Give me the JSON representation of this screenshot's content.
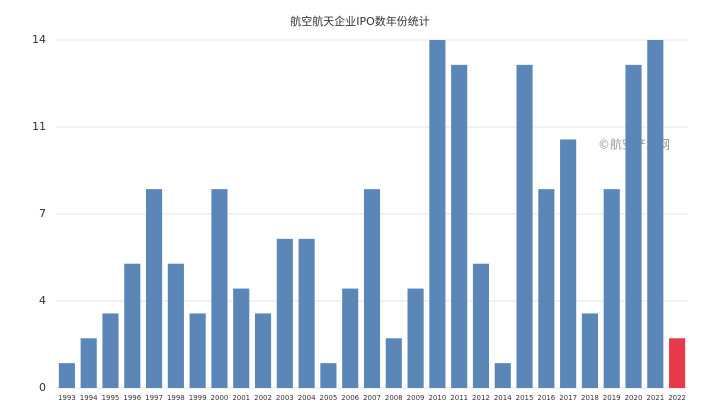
{
  "chart_data": {
    "type": "bar",
    "title": "航空航天企业IPO数年份统计",
    "annotation": "©航空产业网",
    "categories": [
      "1993",
      "1994",
      "1995",
      "1996",
      "1997",
      "1998",
      "1999",
      "2000",
      "2001",
      "2002",
      "2003",
      "2004",
      "2005",
      "2006",
      "2007",
      "2008",
      "2009",
      "2010",
      "2011",
      "2012",
      "2014",
      "2015",
      "2016",
      "2017",
      "2018",
      "2019",
      "2020",
      "2021",
      "2022"
    ],
    "values": [
      1,
      2,
      3,
      5,
      8,
      5,
      3,
      8,
      4,
      3,
      6,
      6,
      1,
      4,
      8,
      2,
      4,
      14,
      13,
      5,
      1,
      13,
      8,
      10,
      3,
      8,
      13,
      14,
      2
    ],
    "colors": [
      "#5b86b8",
      "#5b86b8",
      "#5b86b8",
      "#5b86b8",
      "#5b86b8",
      "#5b86b8",
      "#5b86b8",
      "#5b86b8",
      "#5b86b8",
      "#5b86b8",
      "#5b86b8",
      "#5b86b8",
      "#5b86b8",
      "#5b86b8",
      "#5b86b8",
      "#5b86b8",
      "#5b86b8",
      "#5b86b8",
      "#5b86b8",
      "#5b86b8",
      "#5b86b8",
      "#5b86b8",
      "#5b86b8",
      "#5b86b8",
      "#5b86b8",
      "#5b86b8",
      "#5b86b8",
      "#5b86b8",
      "#e8394a"
    ],
    "ylim": [
      0,
      14
    ],
    "yticks": [
      0,
      {
        "value": 3.5,
        "label": "4"
      },
      7,
      {
        "value": 10.5,
        "label": "11"
      },
      14
    ],
    "grid": true
  }
}
